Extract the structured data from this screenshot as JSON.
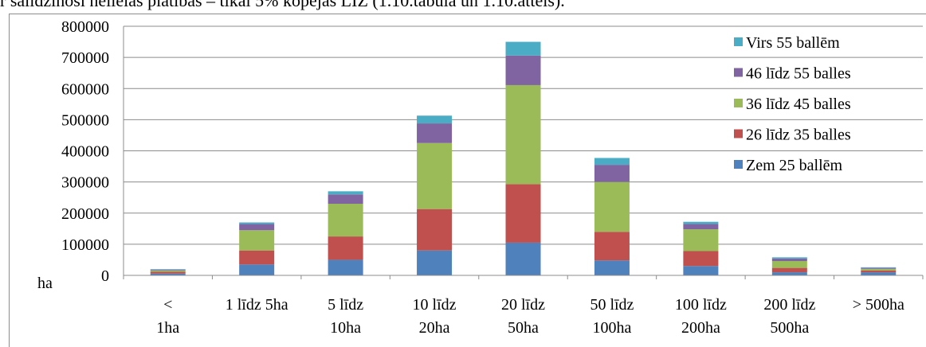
{
  "caption": "r salīdzinoši nelielās platības – tikai 5% kopējās LIZ (1.10.tabula un 1.10.attēls).",
  "colors": {
    "zem25": "#4f81bd",
    "b26_35": "#c0504d",
    "b36_45": "#9bbb59",
    "b46_55": "#8064a2",
    "virs55": "#4bacc6"
  },
  "chart_data": {
    "type": "bar",
    "stacked": true,
    "categories": [
      [
        "< ",
        "1ha"
      ],
      [
        "1 līdz 5ha"
      ],
      [
        "5 līdz",
        "10ha"
      ],
      [
        "10 līdz",
        "20ha"
      ],
      [
        "20 līdz",
        "50ha"
      ],
      [
        "50 līdz",
        "100ha"
      ],
      [
        "100 līdz",
        "200ha"
      ],
      [
        "200 līdz",
        "500ha"
      ],
      [
        "> 500ha"
      ]
    ],
    "ylabel": "ha",
    "ylim": [
      0,
      800000
    ],
    "yticks": [
      "0",
      "100000",
      "200000",
      "300000",
      "400000",
      "500000",
      "600000",
      "700000",
      "800000"
    ],
    "grid": true,
    "legend_position": "top-right",
    "series": [
      {
        "name": "Zem 25 ballēm",
        "color": "#4f81bd",
        "values": [
          6000,
          35000,
          50000,
          80000,
          105000,
          48000,
          30000,
          10000,
          10000
        ]
      },
      {
        "name": "26 līdz 35 balles",
        "color": "#c0504d",
        "values": [
          6000,
          45000,
          75000,
          133000,
          188000,
          92000,
          48000,
          14000,
          6000
        ]
      },
      {
        "name": "36 līdz 45 balles",
        "color": "#9bbb59",
        "values": [
          4000,
          65000,
          105000,
          212000,
          318000,
          160000,
          70000,
          22000,
          5000
        ]
      },
      {
        "name": "46 līdz 55 balles",
        "color": "#8064a2",
        "values": [
          2000,
          20000,
          30000,
          63000,
          95000,
          55000,
          17000,
          8000,
          3000
        ]
      },
      {
        "name": "Virs 55 ballēm",
        "color": "#4bacc6",
        "values": [
          2000,
          5000,
          10000,
          25000,
          44000,
          22000,
          7000,
          4000,
          2000
        ]
      }
    ]
  }
}
